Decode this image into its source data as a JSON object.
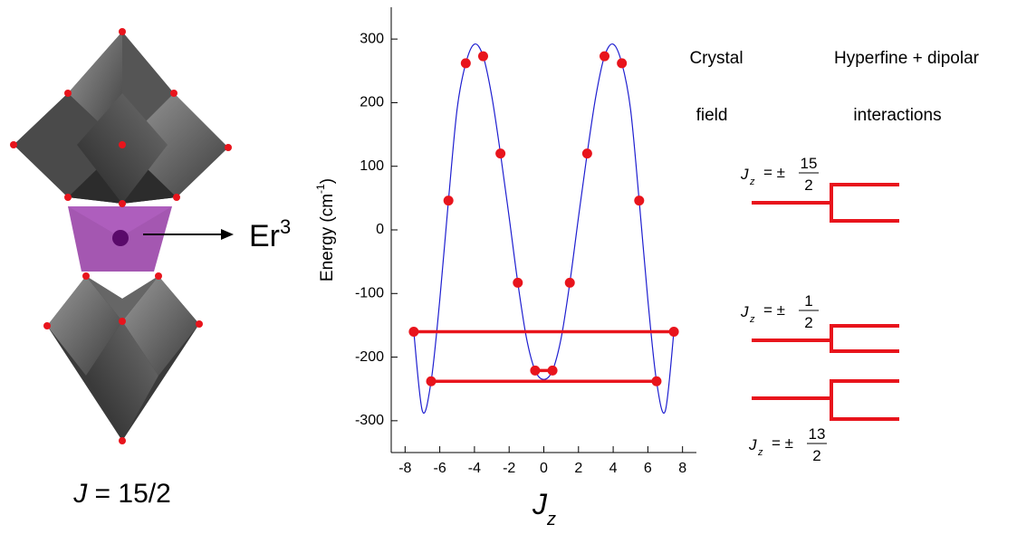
{
  "chart_data": {
    "type": "scatter",
    "ylabel": "Energy (cm",
    "ylabel_sup": "-1",
    "ylabel_end": ")",
    "xlabel": "J",
    "xlabel_sub": "z",
    "xlim": [
      -8.8,
      8.8
    ],
    "xticks": [
      -8,
      -6,
      -4,
      -2,
      0,
      2,
      4,
      6,
      8
    ],
    "ylim": [
      -350,
      350
    ],
    "yticks": [
      -300,
      -200,
      -100,
      0,
      100,
      200,
      300
    ],
    "point_color": "#e8141c",
    "x": [
      -7.5,
      -6.5,
      -5.5,
      -4.5,
      -3.5,
      -2.5,
      -1.5,
      -0.5,
      0.5,
      1.5,
      2.5,
      3.5,
      4.5,
      5.5,
      6.5,
      7.5
    ],
    "values": [
      -160,
      -238,
      46,
      262,
      273,
      120,
      -83,
      -221,
      -221,
      -83,
      120,
      273,
      262,
      46,
      -238,
      -160
    ],
    "curve": {
      "color": "#1f1fd0",
      "x": [
        -7.5,
        -7,
        -6.5,
        -6,
        -5.5,
        -5,
        -4.5,
        -4,
        -3.5,
        -3,
        -2.5,
        -2,
        -1.5,
        -1,
        -0.5,
        0,
        0.5,
        1,
        1.5,
        2,
        2.5,
        3,
        3.5,
        4,
        4.5,
        5,
        5.5,
        6,
        6.5,
        7,
        7.5
      ],
      "values": [
        -160,
        -285,
        -238,
        -110,
        46,
        190,
        262,
        292,
        273,
        210,
        120,
        20,
        -83,
        -170,
        -221,
        -235,
        -221,
        -170,
        -83,
        20,
        120,
        210,
        273,
        292,
        262,
        190,
        46,
        -110,
        -238,
        -285,
        -160
      ]
    },
    "connections": [
      {
        "x": [
          -7.5,
          7.5
        ],
        "values": [
          -160,
          -160
        ]
      },
      {
        "x": [
          -6.5,
          6.5
        ],
        "values": [
          -238,
          -238
        ]
      },
      {
        "x": [
          -0.5,
          0.5
        ],
        "values": [
          -221,
          -221
        ]
      }
    ]
  },
  "figure": {
    "ion": "Er",
    "ion_charge": "3",
    "j_symbol": "J",
    "j_value": " = 15/2",
    "crystal_field": [
      "Crystal",
      "field"
    ],
    "hyperfine": [
      "Hyperfine + dipolar",
      "interactions"
    ],
    "levels": [
      {
        "symbol": "J",
        "sub": "z",
        "eq": "= ±",
        "num": "15",
        "den": "2"
      },
      {
        "symbol": "J",
        "sub": "z",
        "eq": "= ±",
        "num": "1",
        "den": "2"
      },
      {
        "symbol": "J",
        "sub": "z",
        "eq": "= ±",
        "num": "13",
        "den": "2"
      }
    ]
  }
}
